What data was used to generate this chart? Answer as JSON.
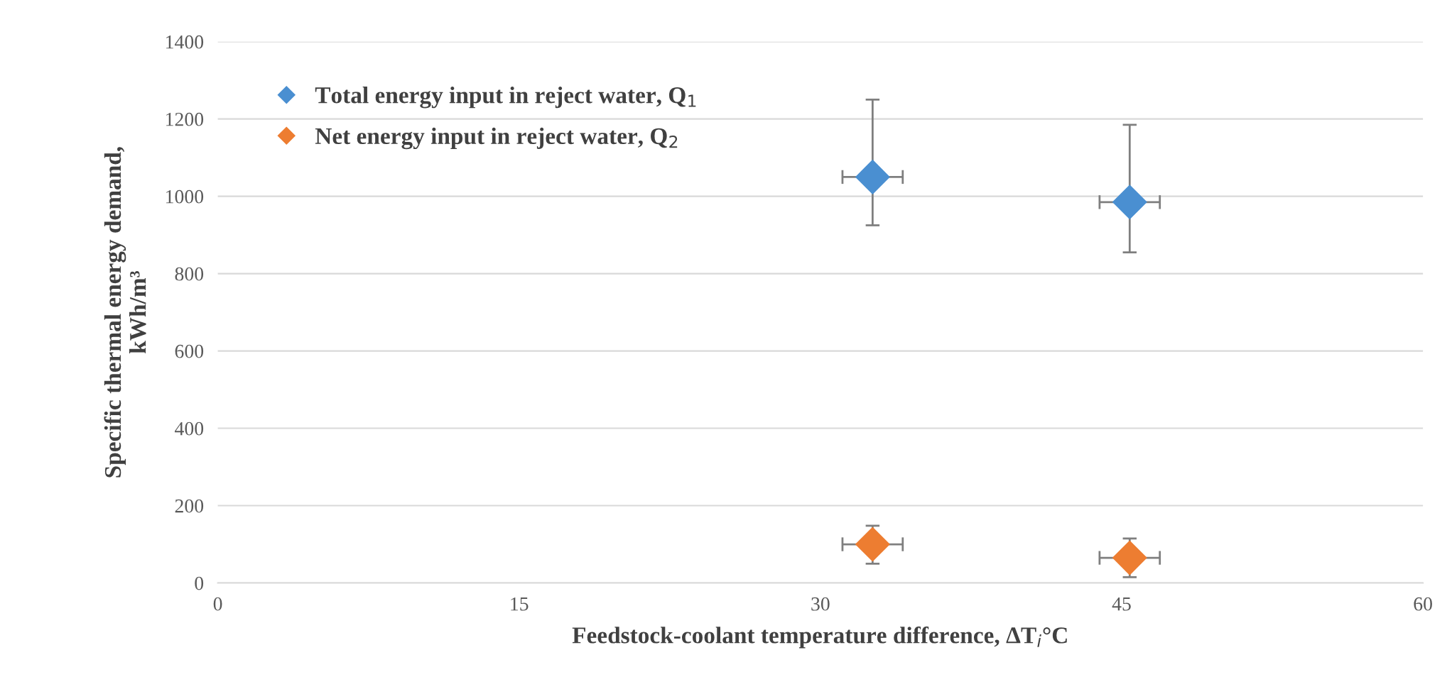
{
  "chart_data": {
    "type": "scatter",
    "xlabel": "Feedstock-coolant temperature difference, ΔT$_{i}$°C",
    "ylabel": "Specific thermal energy demand,\nkWh/m³",
    "x": [
      32.6,
      45.4
    ],
    "series": [
      {
        "name": "Total energy input in reject water, Q$_{1}$",
        "color": "#4a8fd1",
        "values": [
          1050,
          985
        ],
        "errors": [
          [
            925,
            1250
          ],
          [
            855,
            1185
          ]
        ],
        "xerrors": [
          1.5,
          1.5
        ]
      },
      {
        "name": "Net energy input in reject water, Q$_{2}$",
        "color": "#ed7d31",
        "values": [
          100,
          65
        ],
        "errors": [
          [
            50,
            148
          ],
          [
            15,
            115
          ]
        ],
        "xerrors": [
          1.5,
          1.5
        ]
      }
    ],
    "xlim": [
      0,
      60
    ],
    "xticks": [
      0,
      15,
      30,
      45,
      60
    ],
    "ylim": [
      0,
      1400
    ],
    "yticks": [
      0,
      200,
      400,
      600,
      800,
      1000,
      1200,
      1400
    ],
    "grid": "y",
    "legend": "top left",
    "marker": "diamond"
  }
}
